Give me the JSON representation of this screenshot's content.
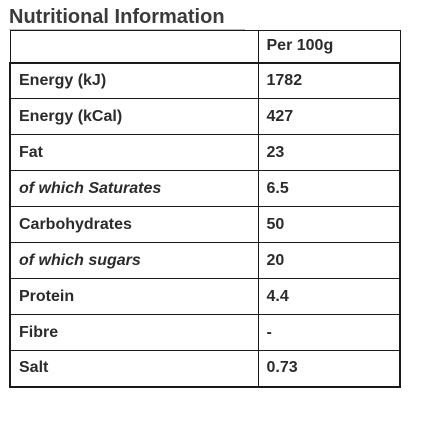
{
  "title": "Nutritional Information",
  "column_header": "Per 100g",
  "rows": [
    {
      "name": "Energy (kJ)",
      "value": "1782",
      "italic": false
    },
    {
      "name": "Energy (kCal)",
      "value": "427",
      "italic": false
    },
    {
      "name": "Fat",
      "value": "23",
      "italic": false
    },
    {
      "name": "of which Saturates",
      "value": "6.5",
      "italic": true
    },
    {
      "name": "Carbohydrates",
      "value": "50",
      "italic": false
    },
    {
      "name": "of which sugars",
      "value": "20",
      "italic": true
    },
    {
      "name": "Protein",
      "value": "4.4",
      "italic": false
    },
    {
      "name": "Fibre",
      "value": "-",
      "italic": false
    },
    {
      "name": "Salt",
      "value": "0.73",
      "italic": false
    }
  ]
}
